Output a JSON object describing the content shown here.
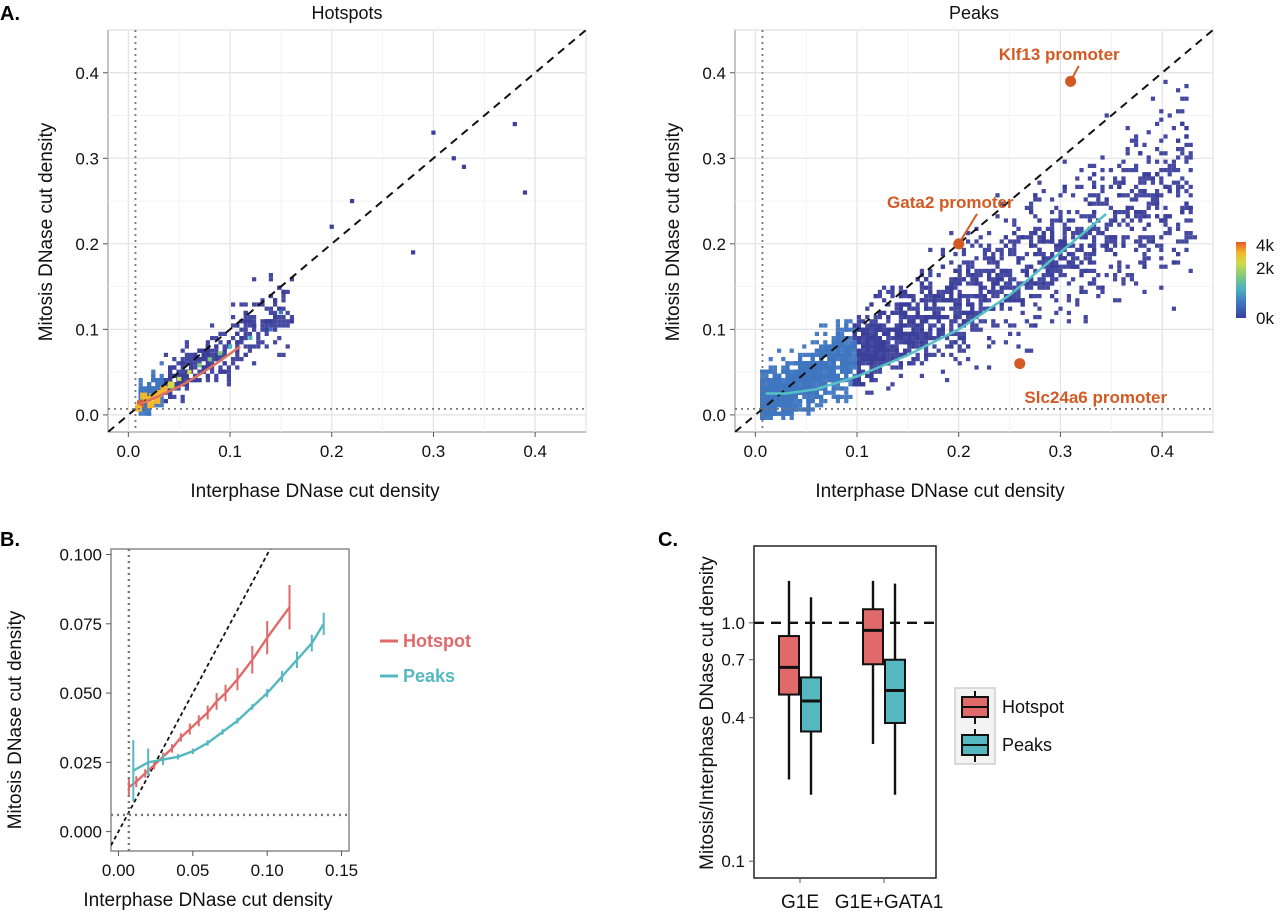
{
  "panel_labels": {
    "a": "A.",
    "b": "B.",
    "c": "C."
  },
  "colorbar": {
    "ticks": [
      "4k",
      "2k",
      "0k"
    ],
    "values": [
      4000,
      2000,
      0
    ],
    "colors": [
      "#3b3f9a",
      "#3f76c0",
      "#4bb0c2",
      "#7dc97d",
      "#cddc48",
      "#f3b62c",
      "#e2582a"
    ]
  },
  "chart_data": [
    {
      "type": "heatmap",
      "title": "Hotspots",
      "xlabel": "Interphase DNase cut density",
      "ylabel": "Mitosis DNase cut density",
      "xlim": [
        -0.02,
        0.45
      ],
      "ylim": [
        -0.02,
        0.45
      ],
      "xticks": [
        0.0,
        0.1,
        0.2,
        0.3,
        0.4
      ],
      "yticks": [
        0.0,
        0.1,
        0.2,
        0.3,
        0.4
      ],
      "xtick_labels": [
        "0.0",
        "0.1",
        "0.2",
        "0.3",
        "0.4"
      ],
      "ytick_labels": [
        "0.0",
        "0.1",
        "0.2",
        "0.3",
        "0.4"
      ],
      "grid": true,
      "reference_lines": {
        "diagonal": "y = x (dashed)",
        "vline_x": 0.007,
        "hline_y": 0.007
      },
      "trend": {
        "name": "",
        "color": "#e07060",
        "x": [
          0.01,
          0.03,
          0.05,
          0.07,
          0.09,
          0.11
        ],
        "y": [
          0.012,
          0.022,
          0.033,
          0.047,
          0.063,
          0.08
        ]
      },
      "density": {
        "max_count": 4000,
        "cells": [
          [
            0.012,
            0.013,
            4000
          ],
          [
            0.018,
            0.018,
            3600
          ],
          [
            0.024,
            0.021,
            3000
          ],
          [
            0.015,
            0.022,
            2600
          ],
          [
            0.022,
            0.012,
            2400
          ],
          [
            0.03,
            0.025,
            2000
          ],
          [
            0.035,
            0.03,
            1400
          ],
          [
            0.028,
            0.017,
            1500
          ],
          [
            0.01,
            0.008,
            2000
          ],
          [
            0.042,
            0.035,
            900
          ],
          [
            0.05,
            0.042,
            500
          ],
          [
            0.06,
            0.05,
            300
          ],
          [
            0.07,
            0.058,
            200
          ],
          [
            0.08,
            0.065,
            120
          ],
          [
            0.09,
            0.072,
            80
          ],
          [
            0.1,
            0.08,
            50
          ],
          [
            0.12,
            0.09,
            20
          ],
          [
            0.14,
            0.1,
            10
          ],
          [
            0.15,
            0.12,
            5
          ],
          [
            0.2,
            0.22,
            1
          ],
          [
            0.22,
            0.25,
            1
          ],
          [
            0.28,
            0.19,
            1
          ],
          [
            0.3,
            0.33,
            1
          ],
          [
            0.32,
            0.3,
            1
          ],
          [
            0.33,
            0.29,
            1
          ],
          [
            0.38,
            0.34,
            1
          ],
          [
            0.39,
            0.26,
            1
          ]
        ]
      },
      "scatter_cloud": {
        "x_range": [
          0.01,
          0.16
        ],
        "spread": 0.03,
        "slope": 0.72,
        "count": 520
      }
    },
    {
      "type": "heatmap",
      "title": "Peaks",
      "xlabel": "Interphase DNase cut density",
      "ylabel": "Mitosis DNase cut density",
      "xlim": [
        -0.02,
        0.45
      ],
      "ylim": [
        -0.02,
        0.45
      ],
      "xticks": [
        0.0,
        0.1,
        0.2,
        0.3,
        0.4
      ],
      "yticks": [
        0.0,
        0.1,
        0.2,
        0.3,
        0.4
      ],
      "xtick_labels": [
        "0.0",
        "0.1",
        "0.2",
        "0.3",
        "0.4"
      ],
      "ytick_labels": [
        "0.0",
        "0.1",
        "0.2",
        "0.3",
        "0.4"
      ],
      "grid": true,
      "reference_lines": {
        "diagonal": "y = x (dashed)",
        "vline_x": 0.007,
        "hline_y": 0.007
      },
      "trend": {
        "name": "",
        "color": "#55c0c4",
        "x": [
          0.01,
          0.03,
          0.06,
          0.1,
          0.15,
          0.2,
          0.25,
          0.3,
          0.345
        ],
        "y": [
          0.025,
          0.025,
          0.03,
          0.045,
          0.07,
          0.1,
          0.14,
          0.19,
          0.235
        ]
      },
      "scatter_cloud": {
        "x_range": [
          0.005,
          0.43
        ],
        "spread": 0.07,
        "slope": 0.62,
        "count": 2600
      },
      "annotations": [
        {
          "label": "Klf13 promoter",
          "x": 0.31,
          "y": 0.39,
          "label_x": 0.2,
          "label_y": 0.415
        },
        {
          "label": "Gata2 promoter",
          "x": 0.2,
          "y": 0.2,
          "label_x": 0.1,
          "label_y": 0.242
        },
        {
          "label": "Slc24a6 promoter",
          "x": 0.26,
          "y": 0.06,
          "label_x": 0.24,
          "label_y": 0.014
        }
      ]
    },
    {
      "type": "line",
      "title": "",
      "xlabel": "Interphase DNase cut density",
      "ylabel": "Mitosis DNase cut density",
      "xlim": [
        -0.005,
        0.155
      ],
      "ylim": [
        -0.007,
        0.102
      ],
      "xticks": [
        0.0,
        0.05,
        0.1,
        0.15
      ],
      "yticks": [
        0.0,
        0.025,
        0.05,
        0.075,
        0.1
      ],
      "xtick_labels": [
        "0.00",
        "0.05",
        "0.10",
        "0.15"
      ],
      "ytick_labels": [
        "0.000",
        "0.025",
        "0.050",
        "0.075",
        "0.100"
      ],
      "grid": false,
      "legend_position": "right",
      "reference_lines": {
        "diagonal": "y = x (dashed)",
        "vline_x": 0.007,
        "hline_y": 0.006
      },
      "series": [
        {
          "name": "Hotspot",
          "color": "#e06a6a",
          "x": [
            0.007,
            0.012,
            0.018,
            0.024,
            0.03,
            0.036,
            0.042,
            0.048,
            0.054,
            0.06,
            0.066,
            0.072,
            0.08,
            0.09,
            0.1,
            0.115
          ],
          "y": [
            0.016,
            0.018,
            0.021,
            0.024,
            0.027,
            0.03,
            0.034,
            0.037,
            0.04,
            0.043,
            0.047,
            0.05,
            0.055,
            0.062,
            0.07,
            0.081
          ],
          "err": [
            0.003,
            0.002,
            0.0015,
            0.0015,
            0.0015,
            0.0015,
            0.0015,
            0.002,
            0.002,
            0.0025,
            0.003,
            0.003,
            0.004,
            0.005,
            0.006,
            0.008
          ]
        },
        {
          "name": "Peaks",
          "color": "#55b8c0",
          "x": [
            0.01,
            0.02,
            0.03,
            0.04,
            0.05,
            0.06,
            0.07,
            0.08,
            0.09,
            0.1,
            0.11,
            0.12,
            0.13,
            0.138
          ],
          "y": [
            0.022,
            0.025,
            0.026,
            0.027,
            0.029,
            0.032,
            0.036,
            0.04,
            0.045,
            0.05,
            0.056,
            0.062,
            0.068,
            0.075
          ],
          "err": [
            0.011,
            0.005,
            0.002,
            0.001,
            0.001,
            0.001,
            0.001,
            0.001,
            0.001,
            0.0015,
            0.002,
            0.003,
            0.003,
            0.004
          ]
        }
      ]
    },
    {
      "type": "box",
      "title": "",
      "xlabel": "",
      "ylabel": "Mitosis/Interphase DNase cut density",
      "y_scale": "log",
      "ylim": [
        0.085,
        2.1
      ],
      "yticks": [
        0.1,
        0.4,
        0.7,
        1.0
      ],
      "ytick_labels": [
        "0.1",
        "0.4",
        "0.7",
        "1.0"
      ],
      "categories": [
        "G1E",
        "G1E+GATA1"
      ],
      "reference_line_y": 1.0,
      "legend_position": "right",
      "series": [
        {
          "name": "Hotspot",
          "color": "#e06a6a",
          "boxes": [
            {
              "category": "G1E",
              "whisker_low": 0.22,
              "q1": 0.5,
              "median": 0.65,
              "q3": 0.88,
              "whisker_high": 1.5
            },
            {
              "category": "G1E+GATA1",
              "whisker_low": 0.31,
              "q1": 0.67,
              "median": 0.93,
              "q3": 1.14,
              "whisker_high": 1.5
            }
          ]
        },
        {
          "name": "Peaks",
          "color": "#55b8c0",
          "boxes": [
            {
              "category": "G1E",
              "whisker_low": 0.19,
              "q1": 0.35,
              "median": 0.47,
              "q3": 0.59,
              "whisker_high": 1.28
            },
            {
              "category": "G1E+GATA1",
              "whisker_low": 0.19,
              "q1": 0.38,
              "median": 0.52,
              "q3": 0.7,
              "whisker_high": 1.46
            }
          ]
        }
      ]
    }
  ]
}
